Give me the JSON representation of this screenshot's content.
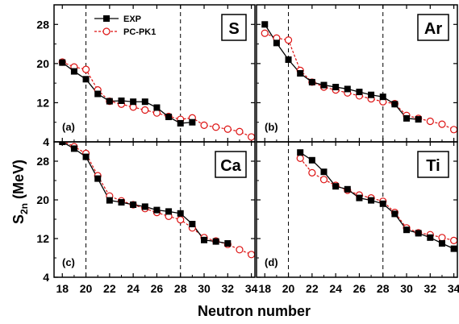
{
  "axes": {
    "ylabel_main": "S",
    "ylabel_sub": "2n",
    "ylabel_unit": " (MeV)",
    "xlabel": "Neutron number"
  },
  "legend": {
    "exp_label": "EXP",
    "calc_label": "PC-PK1"
  },
  "colors": {
    "exp": "#000000",
    "calc": "#dd1111"
  },
  "chart_data": [
    {
      "type": "line",
      "element": "S",
      "panel_label": "(a)",
      "xlim": [
        17.3,
        34.3
      ],
      "ylim": [
        4,
        32
      ],
      "x_ticks": [
        18,
        20,
        22,
        24,
        26,
        28,
        30,
        32,
        34
      ],
      "y_ticks": [
        4,
        12,
        20,
        28
      ],
      "dashed_x": [
        20,
        28
      ],
      "series": [
        {
          "name": "EXP",
          "x": [
            18,
            19,
            20,
            21,
            22,
            23,
            24,
            25,
            26,
            27,
            28,
            29
          ],
          "y": [
            20.2,
            18.4,
            16.8,
            13.8,
            12.3,
            12.4,
            12.2,
            12.2,
            11.0,
            9.1,
            7.8,
            8.0
          ]
        },
        {
          "name": "PC-PK1",
          "x": [
            18,
            19,
            20,
            21,
            22,
            23,
            24,
            25,
            26,
            27,
            28,
            29,
            30,
            31,
            32,
            33,
            34
          ],
          "y": [
            20.3,
            19.3,
            18.8,
            14.6,
            12.3,
            11.7,
            11.1,
            10.5,
            9.9,
            9.2,
            8.6,
            8.9,
            7.4,
            7.0,
            6.6,
            6.1,
            5.0
          ]
        }
      ]
    },
    {
      "type": "line",
      "element": "Ar",
      "panel_label": "(b)",
      "xlim": [
        17.3,
        34.3
      ],
      "ylim": [
        4,
        32
      ],
      "x_ticks": [
        18,
        20,
        22,
        24,
        26,
        28,
        30,
        32,
        34
      ],
      "y_ticks": [
        4,
        12,
        20,
        28
      ],
      "dashed_x": [
        20,
        28
      ],
      "series": [
        {
          "name": "EXP",
          "x": [
            18,
            19,
            20,
            21,
            22,
            23,
            24,
            25,
            26,
            27,
            28,
            29,
            30,
            31
          ],
          "y": [
            28.0,
            24.2,
            20.8,
            18.0,
            16.2,
            15.6,
            15.2,
            14.8,
            14.2,
            13.6,
            13.2,
            11.7,
            8.8,
            8.6
          ]
        },
        {
          "name": "PC-PK1",
          "x": [
            18,
            19,
            20,
            21,
            22,
            23,
            24,
            25,
            26,
            27,
            28,
            29,
            30,
            31,
            32,
            33,
            34
          ],
          "y": [
            26.2,
            25.2,
            24.8,
            18.6,
            16.2,
            15.2,
            14.6,
            14.0,
            13.4,
            12.8,
            12.2,
            11.8,
            9.4,
            8.8,
            8.2,
            7.6,
            6.5
          ]
        }
      ]
    },
    {
      "type": "line",
      "element": "Ca",
      "panel_label": "(c)",
      "xlim": [
        17.3,
        34.3
      ],
      "ylim": [
        4,
        32
      ],
      "x_ticks": [
        18,
        20,
        22,
        24,
        26,
        28,
        30,
        32,
        34
      ],
      "y_ticks": [
        4,
        12,
        20,
        28
      ],
      "dashed_x": [
        20,
        28
      ],
      "series": [
        {
          "name": "EXP",
          "x": [
            18,
            19,
            20,
            21,
            22,
            23,
            24,
            25,
            26,
            27,
            28,
            29,
            30,
            31,
            32
          ],
          "y": [
            32.0,
            30.6,
            28.9,
            24.4,
            19.9,
            19.5,
            19.0,
            18.6,
            17.9,
            17.6,
            17.2,
            15.0,
            11.7,
            11.4,
            11.0
          ]
        },
        {
          "name": "PC-PK1",
          "x": [
            18,
            19,
            20,
            21,
            22,
            23,
            24,
            25,
            26,
            27,
            28,
            29,
            30,
            31,
            32,
            33,
            34
          ],
          "y": [
            32.2,
            31.0,
            29.6,
            25.0,
            20.8,
            19.8,
            19.0,
            18.2,
            17.4,
            16.6,
            15.9,
            14.2,
            12.2,
            11.5,
            10.8,
            9.7,
            8.7
          ]
        }
      ]
    },
    {
      "type": "line",
      "element": "Ti",
      "panel_label": "(d)",
      "xlim": [
        17.3,
        34.3
      ],
      "ylim": [
        4,
        32
      ],
      "x_ticks": [
        18,
        20,
        22,
        24,
        26,
        28,
        30,
        32,
        34
      ],
      "y_ticks": [
        4,
        12,
        20,
        28
      ],
      "dashed_x": [
        20,
        28
      ],
      "series": [
        {
          "name": "EXP",
          "x": [
            21,
            22,
            23,
            24,
            25,
            26,
            27,
            28,
            29,
            30,
            31,
            32,
            33,
            34
          ],
          "y": [
            29.8,
            28.2,
            25.8,
            22.8,
            22.2,
            20.4,
            19.9,
            19.2,
            17.1,
            13.8,
            13.1,
            12.2,
            11.0,
            9.9
          ]
        },
        {
          "name": "PC-PK1",
          "x": [
            21,
            22,
            23,
            24,
            25,
            26,
            27,
            28,
            29,
            30,
            31,
            32,
            33,
            34
          ],
          "y": [
            28.6,
            25.6,
            24.2,
            23.0,
            22.0,
            21.0,
            20.4,
            19.7,
            17.4,
            14.2,
            13.2,
            12.8,
            12.2,
            11.6
          ]
        }
      ]
    }
  ]
}
